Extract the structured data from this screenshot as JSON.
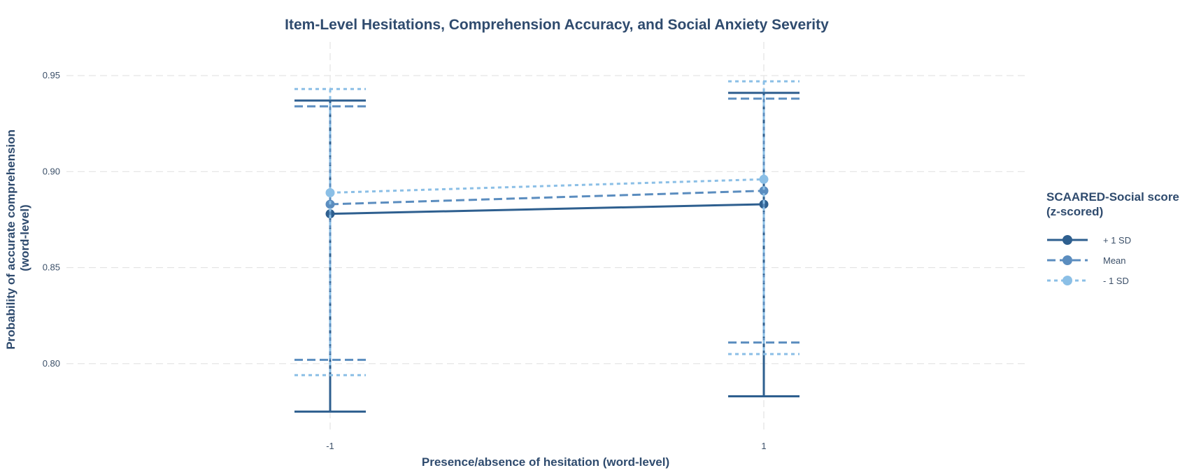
{
  "chart_data": {
    "type": "line",
    "title": "Item-Level Hesitations, Comprehension Accuracy, and Social Anxiety Severity",
    "xlabel": "Presence/absence of hesitation (word-level)",
    "ylabel_lines": [
      "Probability of accurate comprehension",
      "(word-level)"
    ],
    "x": [
      -1,
      1
    ],
    "x_tick_labels": [
      "-1",
      "1"
    ],
    "y_ticks": [
      0.8,
      0.85,
      0.9,
      0.95
    ],
    "y_tick_labels": [
      "0.80",
      "0.85",
      "0.90",
      "0.95"
    ],
    "ylim": [
      0.7635,
      0.9675
    ],
    "grid": true,
    "legend": {
      "title_lines": [
        "SCAARED-Social score",
        "(z-scored)"
      ],
      "placement": "right"
    },
    "series": [
      {
        "name": "+ 1 SD",
        "color": "#2e5f8f",
        "dash": "solid",
        "y": [
          0.878,
          0.883
        ],
        "lower": [
          0.775,
          0.783
        ],
        "upper": [
          0.937,
          0.941
        ]
      },
      {
        "name": "Mean",
        "color": "#5b8dbf",
        "dash": "dashed",
        "y": [
          0.883,
          0.89
        ],
        "lower": [
          0.802,
          0.811
        ],
        "upper": [
          0.934,
          0.938
        ]
      },
      {
        "name": "- 1 SD",
        "color": "#8bbfe6",
        "dash": "dotted",
        "y": [
          0.889,
          0.896
        ],
        "lower": [
          0.794,
          0.805
        ],
        "upper": [
          0.943,
          0.947
        ]
      }
    ]
  }
}
